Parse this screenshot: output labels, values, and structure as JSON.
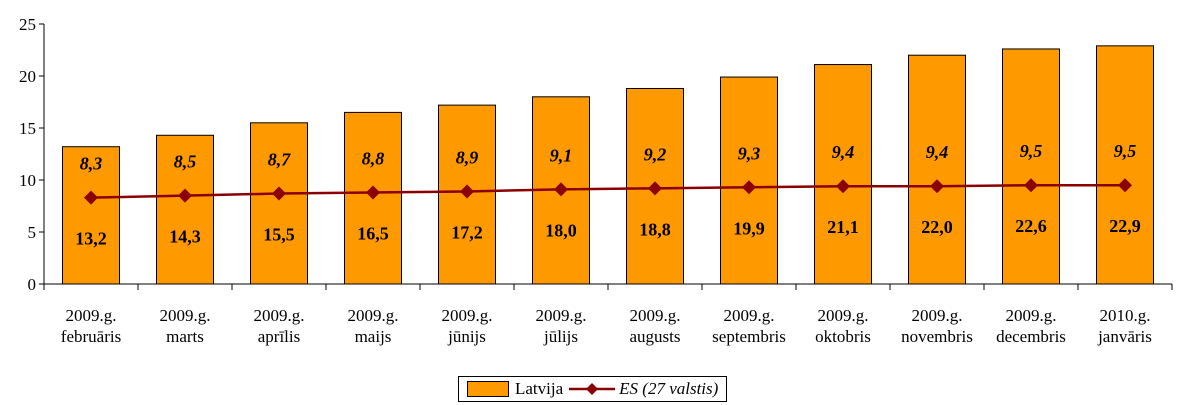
{
  "chart_data": {
    "type": "bar",
    "categories": [
      [
        "2009.g.",
        "februāris"
      ],
      [
        "2009.g.",
        "marts"
      ],
      [
        "2009.g.",
        "aprīlis"
      ],
      [
        "2009.g.",
        "maijs"
      ],
      [
        "2009.g.",
        "jūnijs"
      ],
      [
        "2009.g.",
        "jūlijs"
      ],
      [
        "2009.g.",
        "augusts"
      ],
      [
        "2009.g.",
        "septembris"
      ],
      [
        "2009.g.",
        "oktobris"
      ],
      [
        "2009.g.",
        "novembris"
      ],
      [
        "2009.g.",
        "decembris"
      ],
      [
        "2010.g.",
        "janvāris"
      ]
    ],
    "series": [
      {
        "name": "Latvija",
        "type": "bar",
        "values": [
          13.2,
          14.3,
          15.5,
          16.5,
          17.2,
          18.0,
          18.8,
          19.9,
          21.1,
          22.0,
          22.6,
          22.9
        ],
        "labels": [
          "13,2",
          "14,3",
          "15,5",
          "16,5",
          "17,2",
          "18,0",
          "18,8",
          "19,9",
          "21,1",
          "22,0",
          "22,6",
          "22,9"
        ],
        "color": "#FF9900"
      },
      {
        "name": "ES (27 valstis)",
        "type": "line",
        "values": [
          8.3,
          8.5,
          8.7,
          8.8,
          8.9,
          9.1,
          9.2,
          9.3,
          9.4,
          9.4,
          9.5,
          9.5
        ],
        "labels": [
          "8,3",
          "8,5",
          "8,7",
          "8,8",
          "8,9",
          "9,1",
          "9,2",
          "9,3",
          "9,4",
          "9,4",
          "9,5",
          "9,5"
        ],
        "color": "#8B0000"
      }
    ],
    "ylim": [
      0,
      25
    ],
    "yticks": [
      0,
      5,
      10,
      15,
      20,
      25
    ],
    "grid": false,
    "legend_position": "bottom"
  }
}
